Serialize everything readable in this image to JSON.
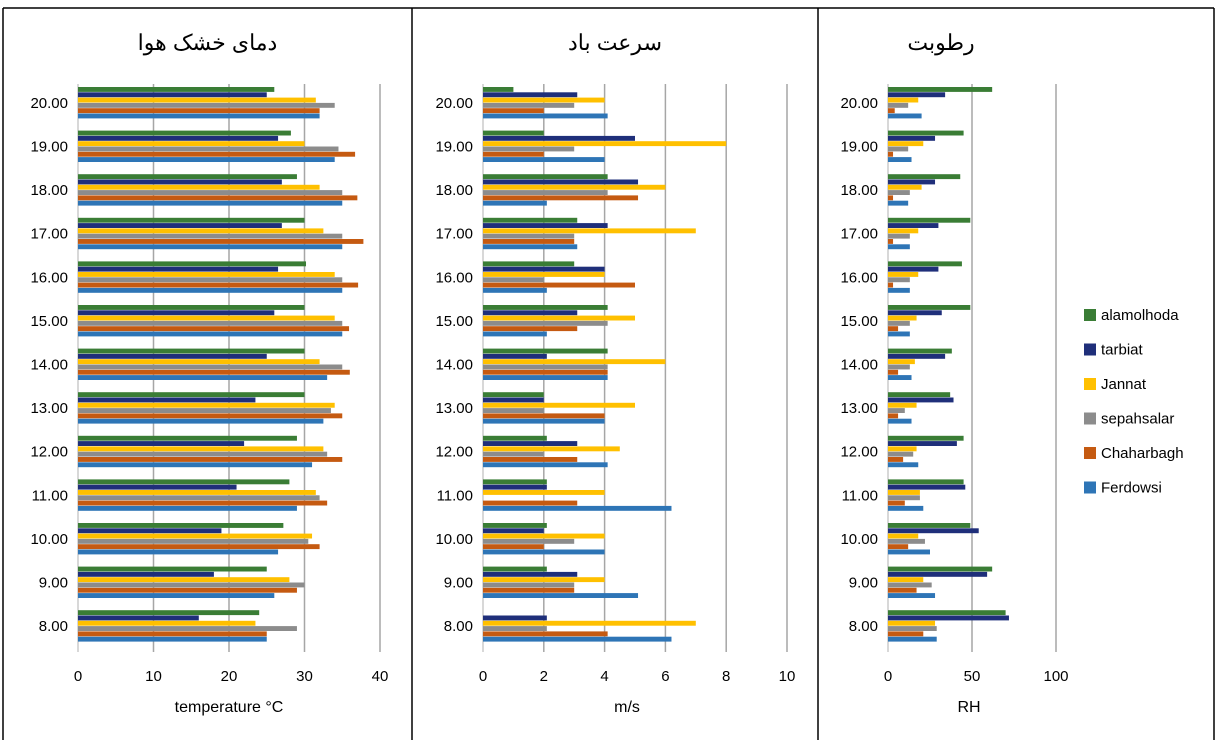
{
  "colors": {
    "Ferdowsi": "#2e75b6",
    "Chaharbagh": "#c55a11",
    "sepahsalar": "#8c8c8c",
    "Jannat": "#ffc000",
    "tarbiat": "#1f2f7a",
    "alamolhoda": "#3a7d35",
    "grid": "#a6a6a6",
    "border": "#000000"
  },
  "legend": {
    "position": "right",
    "items": [
      "alamolhoda",
      "tarbiat",
      "Jannat",
      "sepahsalar",
      "Chaharbagh",
      "Ferdowsi"
    ]
  },
  "chart_data": [
    {
      "type": "bar",
      "orientation": "horizontal",
      "title": "دمای خشک هوا",
      "xlabel": "temperature  °C",
      "xlim": [
        0,
        40
      ],
      "xticks": [
        "0",
        "10",
        "20",
        "30",
        "40"
      ],
      "grid": true,
      "categories": [
        "20.00",
        "19.00",
        "18.00",
        "17.00",
        "16.00",
        "15.00",
        "14.00",
        "13.00",
        "12.00",
        "11.00",
        "10.00",
        "9.00",
        "8.00"
      ],
      "series": [
        {
          "name": "alamolhoda",
          "values": [
            26,
            28.2,
            29,
            30,
            30.2,
            30,
            30,
            30,
            29,
            28,
            27.2,
            25,
            24
          ]
        },
        {
          "name": "tarbiat",
          "values": [
            25,
            26.5,
            27,
            27,
            26.5,
            26,
            25,
            23.5,
            22,
            21,
            19,
            18,
            16
          ]
        },
        {
          "name": "Jannat",
          "values": [
            31.5,
            30,
            32,
            32.5,
            34,
            34,
            32,
            34,
            32.5,
            31.5,
            31,
            28,
            23.5
          ]
        },
        {
          "name": "sepahsalar",
          "values": [
            34,
            34.5,
            35,
            35,
            35,
            35,
            35,
            33.5,
            33,
            32,
            30.5,
            30,
            29
          ]
        },
        {
          "name": "Chaharbagh",
          "values": [
            32,
            36.7,
            37,
            37.8,
            37.1,
            35.9,
            36,
            35,
            35,
            33,
            32,
            29,
            25
          ]
        },
        {
          "name": "Ferdowsi",
          "values": [
            32,
            34,
            35,
            35,
            35,
            35,
            33,
            32.5,
            31,
            29,
            26.5,
            26,
            25
          ]
        }
      ]
    },
    {
      "type": "bar",
      "orientation": "horizontal",
      "title": "سرعت باد",
      "xlabel": "m/s",
      "xlim": [
        0,
        10
      ],
      "xticks": [
        "0",
        "2",
        "4",
        "6",
        "8",
        "10"
      ],
      "grid": true,
      "categories": [
        "20.00",
        "19.00",
        "18.00",
        "17.00",
        "16.00",
        "15.00",
        "14.00",
        "13.00",
        "12.00",
        "11.00",
        "10.00",
        "9.00",
        "8.00"
      ],
      "series": [
        {
          "name": "alamolhoda",
          "values": [
            1,
            2,
            4.1,
            3.1,
            3,
            4.1,
            4.1,
            2,
            2.1,
            2.1,
            2.1,
            2.1,
            0
          ]
        },
        {
          "name": "tarbiat",
          "values": [
            3.1,
            5,
            5.1,
            4.1,
            4,
            3.1,
            2.1,
            2,
            3.1,
            2.1,
            2,
            3.1,
            2.1
          ]
        },
        {
          "name": "Jannat",
          "values": [
            4,
            8,
            6,
            7,
            4,
            5,
            6,
            5,
            4.5,
            4,
            4,
            4,
            7
          ]
        },
        {
          "name": "sepahsalar",
          "values": [
            3,
            3,
            4.1,
            3,
            2,
            4.1,
            4.1,
            2,
            2,
            0,
            3,
            3,
            2.1
          ]
        },
        {
          "name": "Chaharbagh",
          "values": [
            2,
            2,
            5.1,
            3,
            5,
            3.1,
            4.1,
            4,
            3.1,
            3.1,
            2,
            3,
            4.1
          ]
        },
        {
          "name": "Ferdowsi",
          "values": [
            4.1,
            4,
            2.1,
            3.1,
            2.1,
            2.1,
            4.1,
            4,
            4.1,
            6.2,
            4,
            5.1,
            6.2
          ]
        }
      ]
    },
    {
      "type": "bar",
      "orientation": "horizontal",
      "title": "رطوبت",
      "xlabel": "RH",
      "xlim": [
        0,
        100
      ],
      "xticks": [
        "0",
        "50",
        "100"
      ],
      "grid": true,
      "categories": [
        "20.00",
        "19.00",
        "18.00",
        "17.00",
        "16.00",
        "15.00",
        "14.00",
        "13.00",
        "12.00",
        "11.00",
        "10.00",
        "9.00",
        "8.00"
      ],
      "series": [
        {
          "name": "alamolhoda",
          "values": [
            62,
            45,
            43,
            49,
            44,
            49,
            38,
            37,
            45,
            45,
            49,
            62,
            70
          ]
        },
        {
          "name": "tarbiat",
          "values": [
            34,
            28,
            28,
            30,
            30,
            32,
            34,
            39,
            41,
            46,
            54,
            59,
            72
          ]
        },
        {
          "name": "Jannat",
          "values": [
            18,
            21,
            20,
            18,
            18,
            17,
            16,
            17,
            17,
            19,
            18,
            21,
            28
          ]
        },
        {
          "name": "sepahsalar",
          "values": [
            12,
            12,
            13,
            13,
            13,
            13,
            13,
            10,
            15,
            19,
            22,
            26,
            29
          ]
        },
        {
          "name": "Chaharbagh",
          "values": [
            4,
            3,
            3,
            3,
            3,
            6,
            6,
            6,
            9,
            10,
            12,
            17,
            21
          ]
        },
        {
          "name": "Ferdowsi",
          "values": [
            20,
            14,
            12,
            13,
            13,
            13,
            14,
            14,
            18,
            21,
            25,
            28,
            29
          ]
        }
      ]
    }
  ]
}
